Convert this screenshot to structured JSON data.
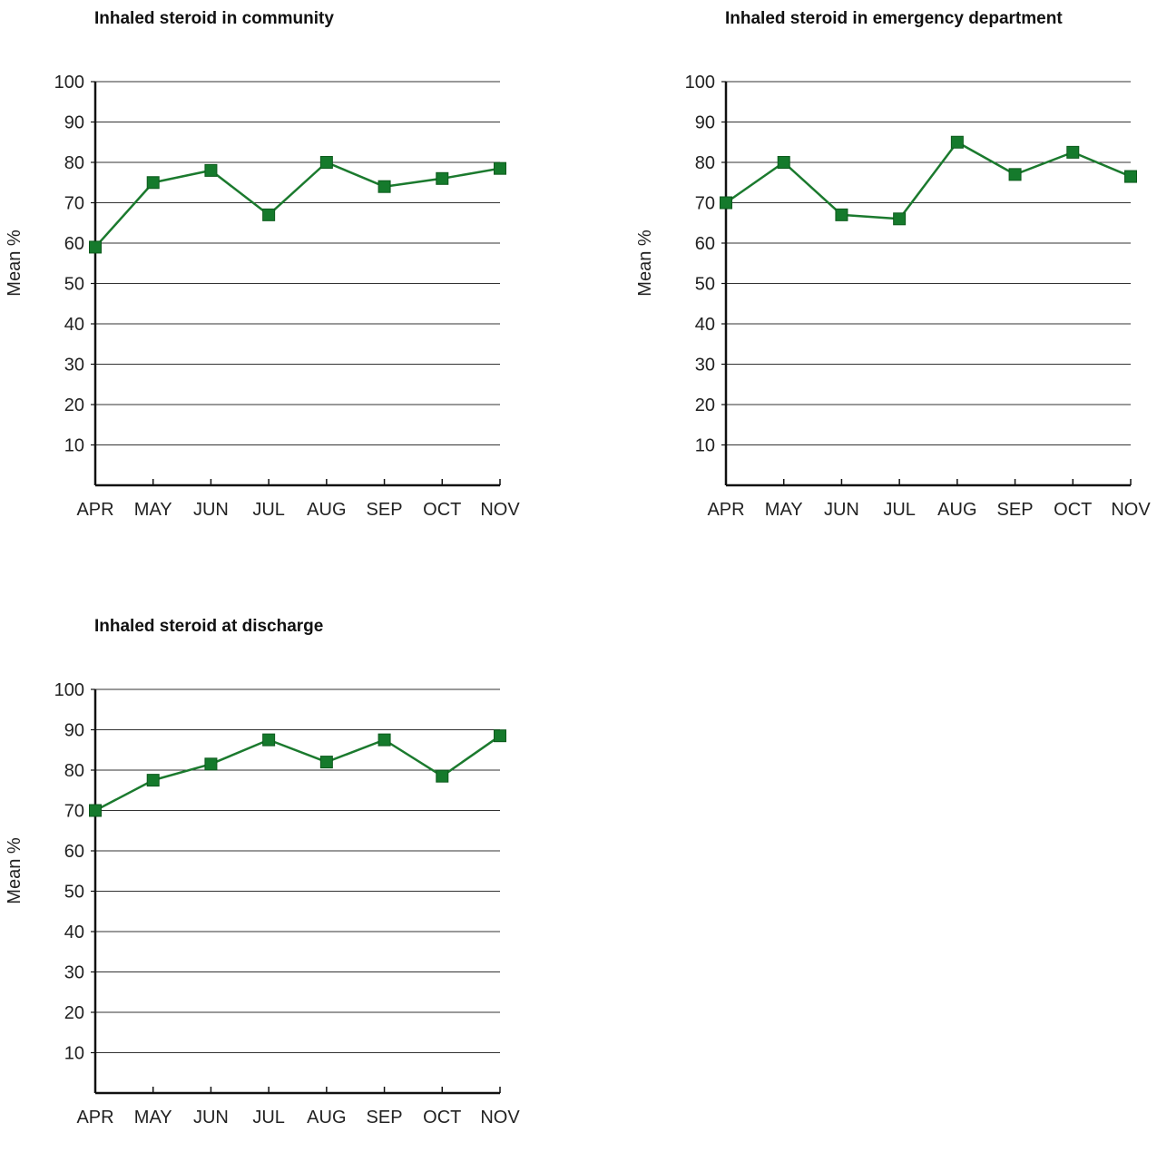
{
  "colors": {
    "series": "#1b7a2e",
    "marker": "#157a2c",
    "marker_stroke": "#0c5a1c",
    "grid": "#333333",
    "axis": "#111111"
  },
  "chart_data": [
    {
      "type": "line",
      "title": "Inhaled steroid in community",
      "ylabel": "Mean %",
      "xlabel": "",
      "categories": [
        "APR",
        "MAY",
        "JUN",
        "JUL",
        "AUG",
        "SEP",
        "OCT",
        "NOV"
      ],
      "ylim": [
        0,
        100
      ],
      "yticks": [
        10,
        20,
        30,
        40,
        50,
        60,
        70,
        80,
        90,
        100
      ],
      "grid": true,
      "marker": "square",
      "series": [
        {
          "values": [
            59,
            75,
            78,
            67,
            80,
            74,
            76,
            78.5
          ]
        }
      ]
    },
    {
      "type": "line",
      "title": "Inhaled steroid in emergency department",
      "ylabel": "Mean %",
      "xlabel": "",
      "categories": [
        "APR",
        "MAY",
        "JUN",
        "JUL",
        "AUG",
        "SEP",
        "OCT",
        "NOV"
      ],
      "ylim": [
        0,
        100
      ],
      "yticks": [
        10,
        20,
        30,
        40,
        50,
        60,
        70,
        80,
        90,
        100
      ],
      "grid": true,
      "marker": "square",
      "series": [
        {
          "values": [
            70,
            80,
            67,
            66,
            85,
            77,
            82.5,
            76.5
          ]
        }
      ]
    },
    {
      "type": "line",
      "title": "Inhaled steroid at discharge",
      "ylabel": "Mean %",
      "xlabel": "",
      "categories": [
        "APR",
        "MAY",
        "JUN",
        "JUL",
        "AUG",
        "SEP",
        "OCT",
        "NOV"
      ],
      "ylim": [
        0,
        100
      ],
      "yticks": [
        10,
        20,
        30,
        40,
        50,
        60,
        70,
        80,
        90,
        100
      ],
      "grid": true,
      "marker": "square",
      "series": [
        {
          "values": [
            70,
            77.5,
            81.5,
            87.5,
            82,
            87.5,
            78.5,
            88.5
          ]
        }
      ]
    }
  ]
}
